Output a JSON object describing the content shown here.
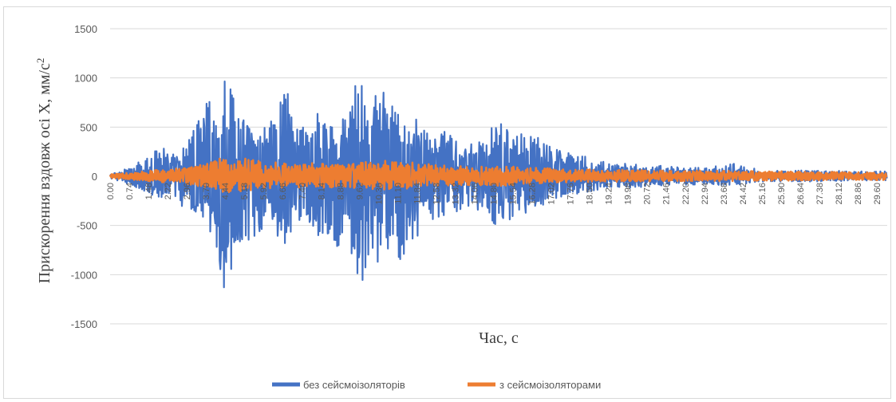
{
  "chart_data": {
    "type": "line",
    "ylabel": "Прискорення вздовж осі X, мм/с",
    "ylabel_sup": "2",
    "xlabel": "Час, с",
    "ylim": [
      -1500,
      1500
    ],
    "yticks": [
      1500,
      1000,
      500,
      0,
      -500,
      -1000,
      -1500
    ],
    "xlim": [
      0,
      30
    ],
    "xtick_labels": [
      "0.00",
      "0.74",
      "1.48",
      "2.22",
      "2.96",
      "3.70",
      "4.44",
      "5.18",
      "5.92",
      "6.66",
      "7.40",
      "8.14",
      "8.88",
      "9.62",
      "10.36",
      "11.10",
      "11.84",
      "12.58",
      "13.32",
      "14.06",
      "14.80",
      "15.54",
      "16.28",
      "17.02",
      "17.76",
      "18.50",
      "19.24",
      "19.98",
      "20.72",
      "21.46",
      "22.20",
      "22.94",
      "23.68",
      "24.42",
      "25.16",
      "25.90",
      "26.64",
      "27.38",
      "28.12",
      "28.86",
      "29.60"
    ],
    "grid": true,
    "legend_position": "bottom",
    "series": [
      {
        "name": "без сейсмоізоляторів",
        "color": "#4472c4",
        "envelope_time": [
          0,
          0.5,
          1.0,
          1.5,
          2.0,
          2.5,
          3.0,
          3.5,
          4.0,
          4.4,
          4.8,
          5.2,
          5.6,
          6.0,
          6.4,
          6.8,
          7.2,
          7.6,
          8.0,
          8.4,
          8.8,
          9.2,
          9.6,
          10.0,
          10.4,
          10.8,
          11.2,
          11.6,
          12.0,
          12.5,
          13.0,
          13.5,
          14.0,
          14.5,
          15.0,
          15.5,
          16.0,
          16.5,
          17.0,
          17.5,
          18.0,
          18.5,
          19.0,
          20.0,
          21.0,
          22.0,
          23.0,
          24.0,
          24.5,
          25.0,
          26.0,
          27.0,
          28.0,
          29.0,
          30.0
        ],
        "envelope_max": [
          20,
          60,
          150,
          200,
          320,
          250,
          340,
          650,
          900,
          1010,
          850,
          550,
          420,
          500,
          650,
          880,
          620,
          470,
          730,
          560,
          450,
          800,
          1020,
          900,
          860,
          990,
          700,
          680,
          500,
          400,
          470,
          350,
          330,
          420,
          610,
          400,
          450,
          470,
          300,
          280,
          210,
          200,
          160,
          130,
          110,
          100,
          90,
          130,
          120,
          70,
          60,
          60,
          55,
          50,
          50
        ],
        "envelope_min": [
          -20,
          -60,
          -120,
          -180,
          -220,
          -250,
          -350,
          -420,
          -650,
          -1280,
          -850,
          -700,
          -650,
          -500,
          -600,
          -700,
          -500,
          -430,
          -600,
          -650,
          -920,
          -700,
          -1150,
          -1050,
          -900,
          -800,
          -850,
          -700,
          -620,
          -450,
          -420,
          -350,
          -360,
          -420,
          -600,
          -420,
          -380,
          -300,
          -280,
          -240,
          -180,
          -170,
          -130,
          -120,
          -100,
          -90,
          -80,
          -100,
          -90,
          -60,
          -55,
          -55,
          -50,
          -45,
          -45
        ]
      },
      {
        "name": "з сейсмоізоляторами",
        "color": "#ed7d31",
        "envelope_time": [
          0,
          1,
          2,
          3,
          3.5,
          4.0,
          4.4,
          5.0,
          5.5,
          6.0,
          6.5,
          7.0,
          8.0,
          9.0,
          10.0,
          11.0,
          12.0,
          13.0,
          14.0,
          15.0,
          16.0,
          17.0,
          18.0,
          20.0,
          22.0,
          24.0,
          26.0,
          28.0,
          30.0
        ],
        "envelope_max": [
          20,
          40,
          70,
          90,
          120,
          150,
          230,
          170,
          200,
          110,
          150,
          120,
          140,
          120,
          150,
          170,
          130,
          110,
          100,
          110,
          100,
          80,
          70,
          65,
          60,
          55,
          50,
          45,
          40
        ],
        "envelope_min": [
          -20,
          -40,
          -60,
          -80,
          -120,
          -140,
          -170,
          -150,
          -200,
          -120,
          -130,
          -110,
          -120,
          -110,
          -130,
          -140,
          -110,
          -100,
          -90,
          -100,
          -90,
          -70,
          -60,
          -55,
          -50,
          -50,
          -45,
          -40,
          -40
        ]
      }
    ]
  }
}
